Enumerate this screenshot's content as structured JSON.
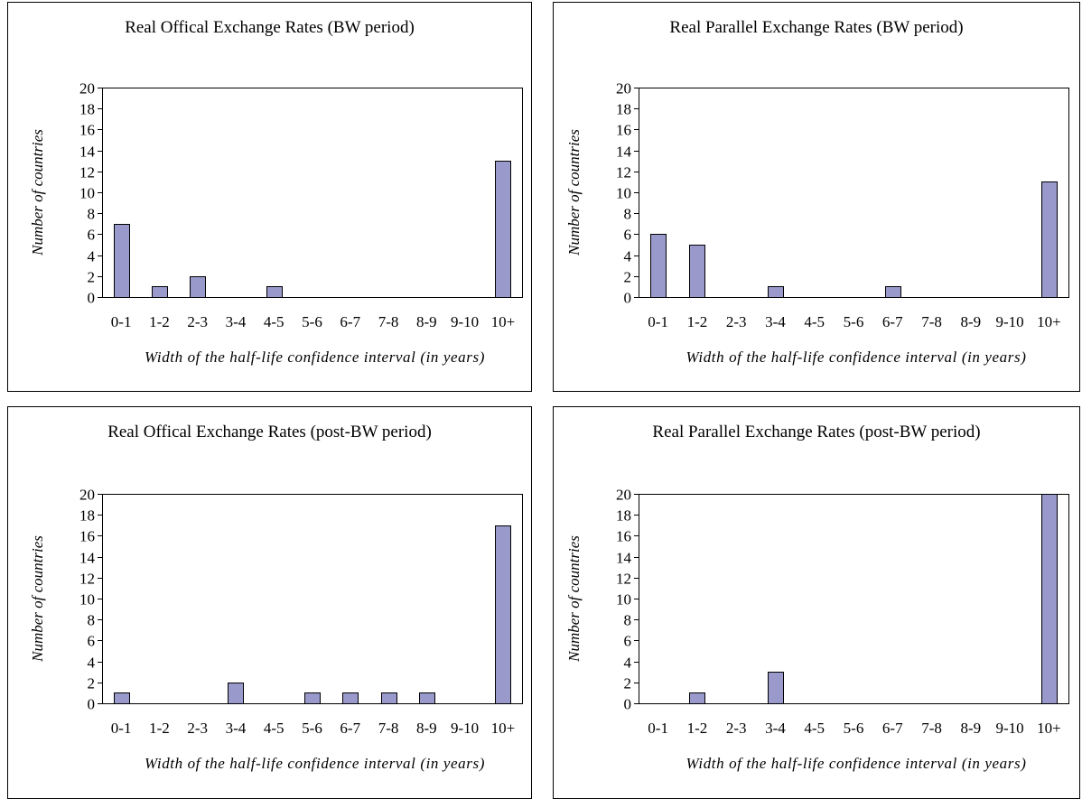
{
  "chart_data": [
    {
      "type": "bar",
      "title": "Real Offical Exchange Rates (BW period)",
      "xlabel": "Width of the half-life confidence interval (in years)",
      "ylabel": "Number of countries",
      "categories": [
        "0-1",
        "1-2",
        "2-3",
        "3-4",
        "4-5",
        "5-6",
        "6-7",
        "7-8",
        "8-9",
        "9-10",
        "10+"
      ],
      "values": [
        7,
        1,
        2,
        0,
        1,
        0,
        0,
        0,
        0,
        0,
        13
      ],
      "ylim": [
        0,
        20
      ],
      "yticks": [
        "0",
        "2",
        "4",
        "6",
        "8",
        "10",
        "12",
        "14",
        "16",
        "18",
        "20"
      ],
      "bar_color": "#9999cc",
      "grid": false
    },
    {
      "type": "bar",
      "title": "Real Parallel Exchange Rates (BW period)",
      "xlabel": "Width of the half-life confidence interval (in years)",
      "ylabel": "Number of countries",
      "categories": [
        "0-1",
        "1-2",
        "2-3",
        "3-4",
        "4-5",
        "5-6",
        "6-7",
        "7-8",
        "8-9",
        "9-10",
        "10+"
      ],
      "values": [
        6,
        5,
        0,
        1,
        0,
        0,
        1,
        0,
        0,
        0,
        11
      ],
      "ylim": [
        0,
        20
      ],
      "yticks": [
        "0",
        "2",
        "4",
        "6",
        "8",
        "10",
        "12",
        "14",
        "16",
        "18",
        "20"
      ],
      "bar_color": "#9999cc",
      "grid": false
    },
    {
      "type": "bar",
      "title": "Real Offical Exchange Rates (post-BW period)",
      "xlabel": "Width of the half-life confidence interval (in years)",
      "ylabel": "Number of countries",
      "categories": [
        "0-1",
        "1-2",
        "2-3",
        "3-4",
        "4-5",
        "5-6",
        "6-7",
        "7-8",
        "8-9",
        "9-10",
        "10+"
      ],
      "values": [
        1,
        0,
        0,
        2,
        0,
        1,
        1,
        1,
        1,
        0,
        17
      ],
      "ylim": [
        0,
        20
      ],
      "yticks": [
        "0",
        "2",
        "4",
        "6",
        "8",
        "10",
        "12",
        "14",
        "16",
        "18",
        "20"
      ],
      "bar_color": "#9999cc",
      "grid": false
    },
    {
      "type": "bar",
      "title": "Real Parallel Exchange Rates (post-BW period)",
      "xlabel": "Width of the half-life confidence interval (in years)",
      "ylabel": "Number of countries",
      "categories": [
        "0-1",
        "1-2",
        "2-3",
        "3-4",
        "4-5",
        "5-6",
        "6-7",
        "7-8",
        "8-9",
        "9-10",
        "10+"
      ],
      "values": [
        0,
        1,
        0,
        3,
        0,
        0,
        0,
        0,
        0,
        0,
        20
      ],
      "ylim": [
        0,
        20
      ],
      "yticks": [
        "0",
        "2",
        "4",
        "6",
        "8",
        "10",
        "12",
        "14",
        "16",
        "18",
        "20"
      ],
      "bar_color": "#9999cc",
      "grid": false
    }
  ]
}
